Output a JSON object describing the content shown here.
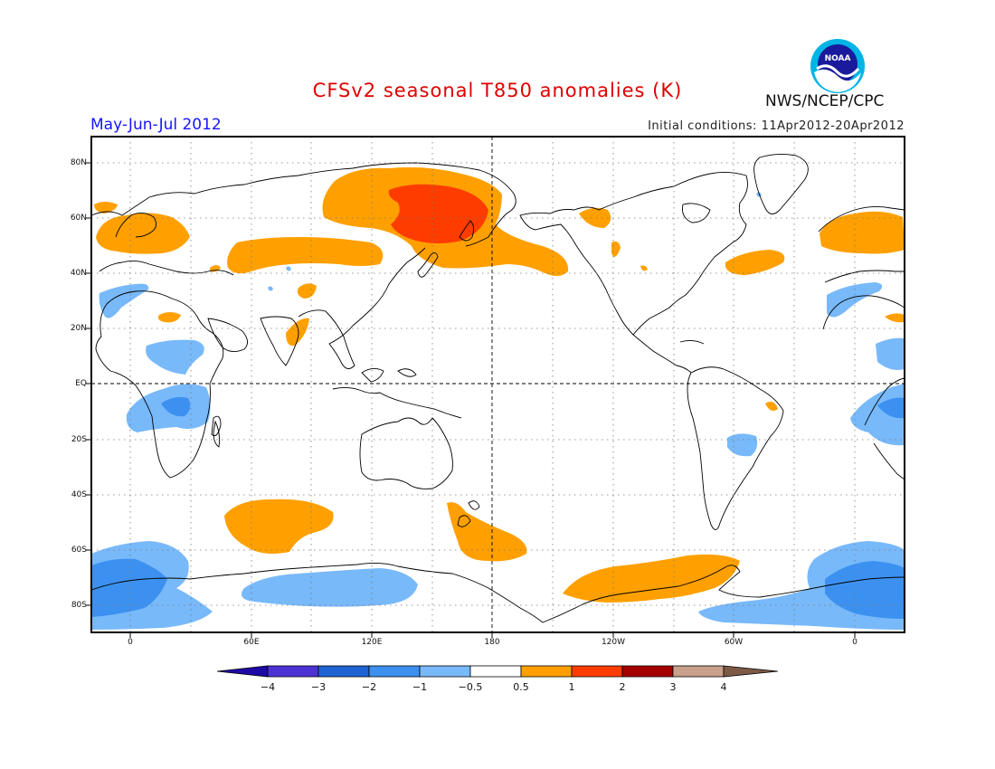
{
  "header": {
    "title": "CFSv2 seasonal T850 anomalies (K)",
    "season": "May-Jun-Jul 2012",
    "initial_conditions": "Initial conditions: 11Apr2012-20Apr2012",
    "organization": "NWS/NCEP/CPC",
    "logo_text": "NOAA"
  },
  "axes": {
    "lat_labels": [
      "80N",
      "60N",
      "40N",
      "20N",
      "EQ",
      "20S",
      "40S",
      "60S",
      "80S"
    ],
    "lon_labels": [
      "0",
      "60E",
      "120E",
      "180",
      "120W",
      "60W",
      "0"
    ]
  },
  "colorbar": {
    "labels": [
      "-4",
      "-3",
      "-2",
      "-1",
      "-0.5",
      "0.5",
      "1",
      "2",
      "3",
      "4"
    ],
    "colors": [
      "#1e0aa5",
      "#4c32d2",
      "#1e64d2",
      "#3c91f0",
      "#78b9fa",
      "#ffffff",
      "#ffa000",
      "#ff3c00",
      "#a50000",
      "#c8a08c",
      "#7d5a46"
    ]
  },
  "map": {
    "projection": "cylindrical equidistant, centered 180",
    "anomaly_colors": {
      "cold_strong": "#1e64d2",
      "cold": "#3c91f0",
      "cold_weak": "#78b9fa",
      "warm": "#ffa000",
      "warm_strong": "#ff3c00"
    }
  }
}
